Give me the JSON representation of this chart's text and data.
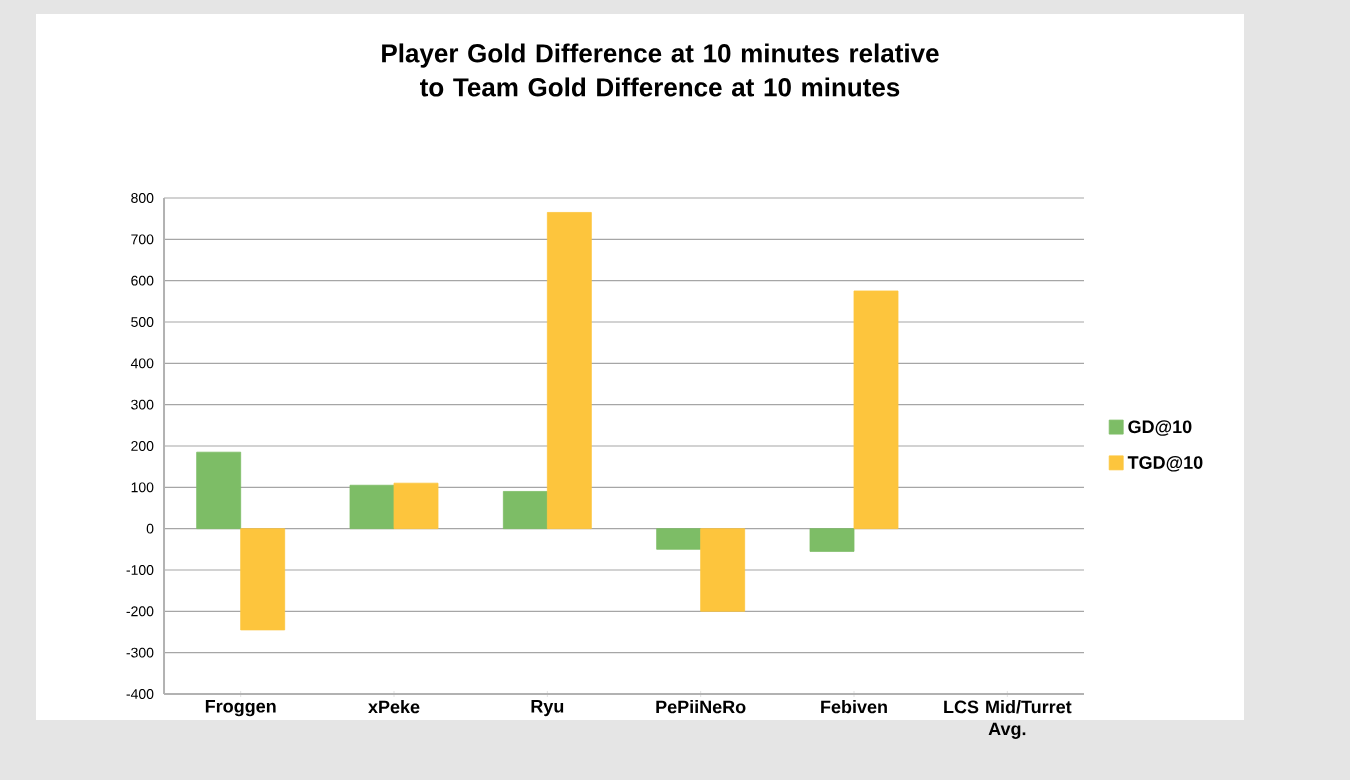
{
  "chart_data": {
    "type": "bar",
    "title": "Player Gold Difference at 10 minutes relative to Team Gold Difference at 10 minutes",
    "categories": [
      "Froggen",
      "xPeke",
      "Ryu",
      "PePiiNeRo",
      "Febiven",
      "LCS Mid/Turret Avg."
    ],
    "series": [
      {
        "name": "GD@10",
        "color": "#7dbd66",
        "values": [
          185,
          105,
          90,
          -50,
          -55,
          null
        ]
      },
      {
        "name": "TGD@10",
        "color": "#fdc53d",
        "values": [
          -245,
          110,
          765,
          -200,
          575,
          null
        ]
      }
    ],
    "ylim": [
      -400,
      800
    ],
    "yticks": [
      -400,
      -300,
      -200,
      -100,
      0,
      100,
      200,
      300,
      400,
      500,
      600,
      700,
      800
    ],
    "grid": "y",
    "legend": "right"
  }
}
